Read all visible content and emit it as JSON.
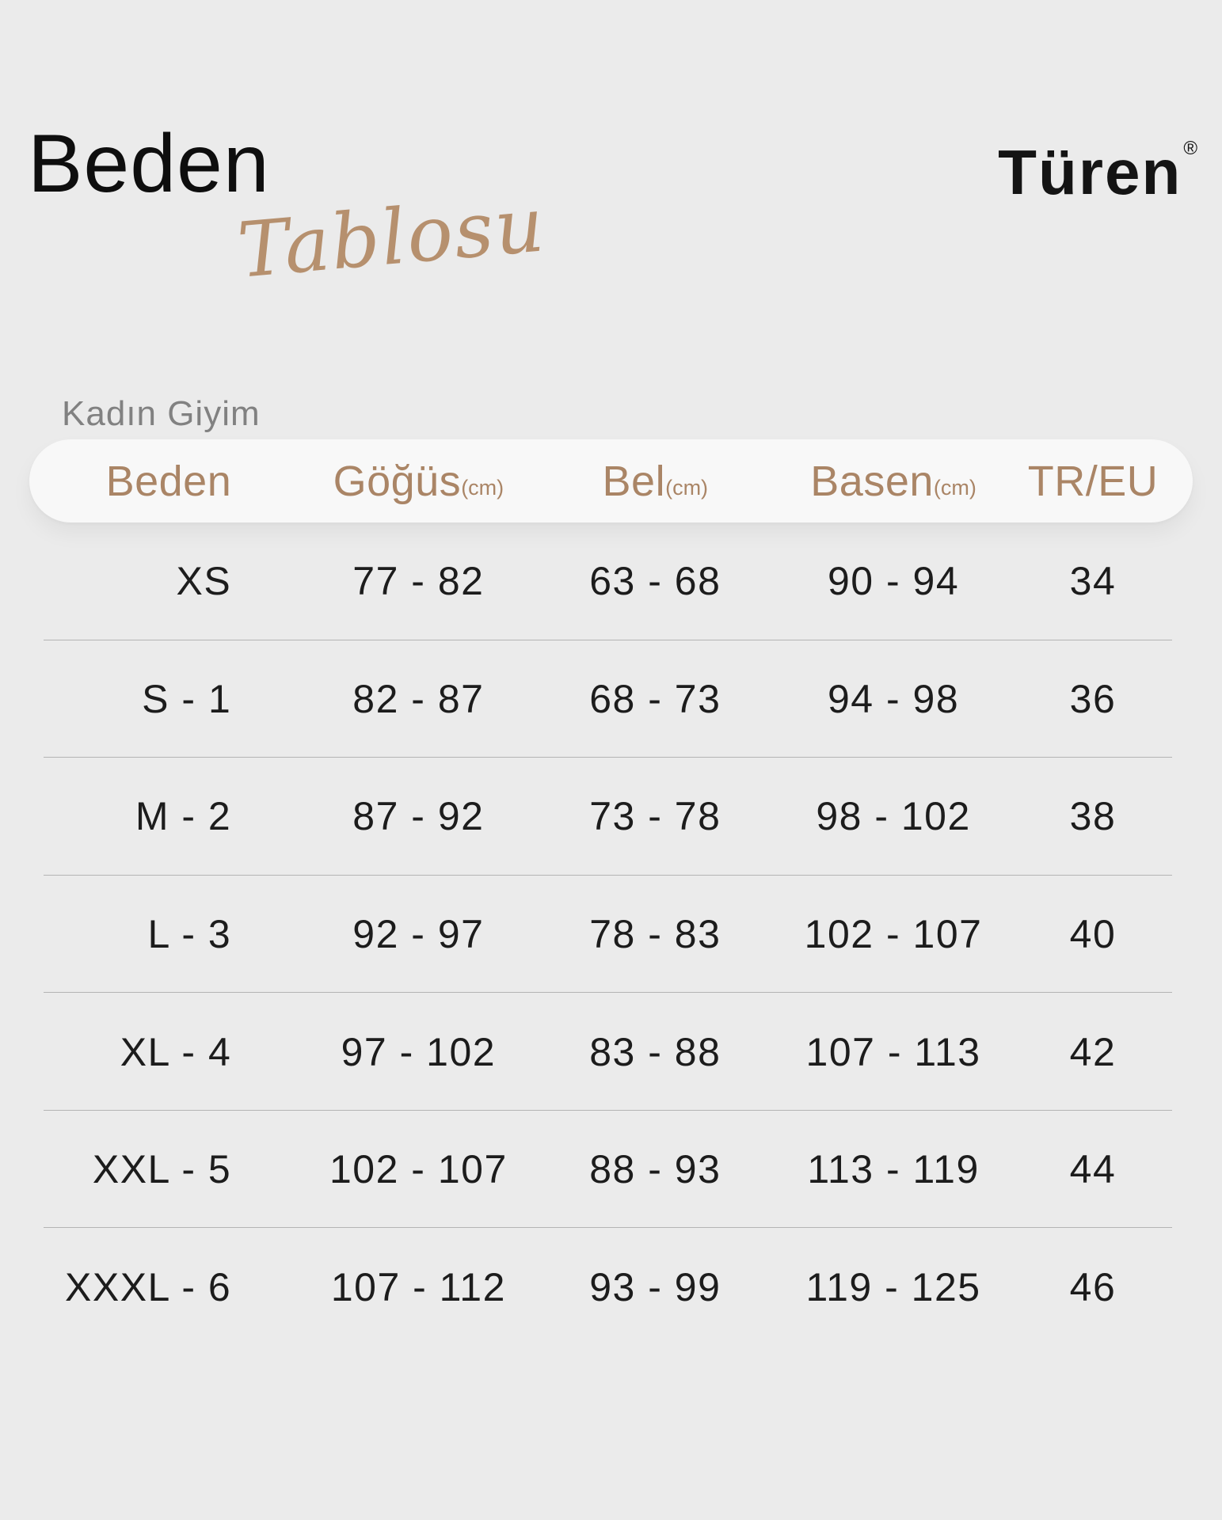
{
  "colors": {
    "background": "#ebebeb",
    "header_pill_bg": "#f8f8f8",
    "accent_brown": "#aa8566",
    "script_brown": "#b6906e",
    "data_text": "#1c1c1c",
    "muted_gray": "#818181",
    "divider_gray": "#8f8f8f"
  },
  "title": {
    "main": "Beden",
    "script": "Tablosu"
  },
  "brand": {
    "name": "Türen",
    "registered_mark": "®"
  },
  "section_label": "Kadın Giyim",
  "table": {
    "headers": [
      {
        "label": "Beden",
        "unit": ""
      },
      {
        "label": "Göğüs",
        "unit": "(cm)"
      },
      {
        "label": "Bel",
        "unit": "(cm)"
      },
      {
        "label": "Basen",
        "unit": "(cm)"
      },
      {
        "label": "TR/EU",
        "unit": ""
      }
    ],
    "rows": [
      [
        "XS",
        "77 - 82",
        "63 - 68",
        "90 - 94",
        "34"
      ],
      [
        "S - 1",
        "82 - 87",
        "68 - 73",
        "94 - 98",
        "36"
      ],
      [
        "M - 2",
        "87 - 92",
        "73 - 78",
        "98 - 102",
        "38"
      ],
      [
        "L - 3",
        "92 - 97",
        "78 - 83",
        "102 - 107",
        "40"
      ],
      [
        "XL - 4",
        "97 - 102",
        "83 - 88",
        "107 - 113",
        "42"
      ],
      [
        "XXL - 5",
        "102 - 107",
        "88 - 93",
        "113 - 119",
        "44"
      ],
      [
        "XXXL - 6",
        "107 - 112",
        "93 - 99",
        "119 - 125",
        "46"
      ]
    ]
  }
}
